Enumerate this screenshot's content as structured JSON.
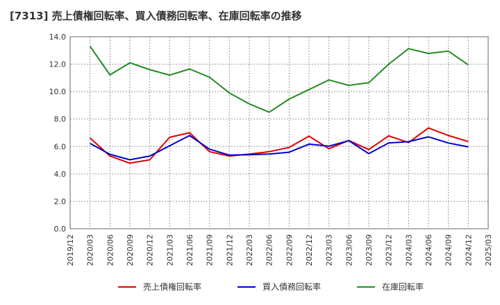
{
  "chart_data": {
    "type": "line",
    "title": "[7313]  売上債権回転率、買入債務回転率、在庫回転率の推移",
    "xlabel": "",
    "ylabel": "",
    "ylim": [
      0,
      14
    ],
    "yticks": [
      "0.0",
      "2.0",
      "4.0",
      "6.0",
      "8.0",
      "10.0",
      "12.0",
      "14.0"
    ],
    "grid": true,
    "legend_position": "bottom",
    "categories": [
      "2019/12",
      "2020/03",
      "2020/06",
      "2020/09",
      "2020/12",
      "2021/03",
      "2021/06",
      "2021/09",
      "2021/12",
      "2022/03",
      "2022/06",
      "2022/09",
      "2022/12",
      "2023/03",
      "2023/06",
      "2023/09",
      "2023/12",
      "2024/03",
      "2024/06",
      "2024/09",
      "2024/12",
      "2025/03"
    ],
    "series": [
      {
        "name": "売上債権回転率",
        "color": "#dd0000",
        "values": [
          null,
          6.62,
          5.3,
          4.78,
          5.03,
          6.67,
          7.0,
          5.62,
          5.3,
          5.45,
          5.62,
          5.93,
          6.75,
          5.83,
          6.44,
          5.77,
          6.78,
          6.28,
          7.35,
          6.8,
          6.36,
          null
        ]
      },
      {
        "name": "買入債務回転率",
        "color": "#0000cc",
        "values": [
          null,
          6.22,
          5.43,
          5.03,
          5.3,
          6.05,
          6.8,
          5.8,
          5.37,
          5.4,
          5.45,
          5.58,
          6.17,
          6.02,
          6.42,
          5.48,
          6.25,
          6.35,
          6.7,
          6.25,
          5.97,
          null
        ]
      },
      {
        "name": "在庫回転率",
        "color": "#228b22",
        "values": [
          null,
          13.3,
          11.22,
          12.1,
          11.6,
          11.2,
          11.65,
          11.05,
          9.9,
          9.1,
          8.5,
          9.45,
          10.15,
          10.85,
          10.45,
          10.65,
          12.0,
          13.13,
          12.78,
          12.95,
          11.95,
          null
        ]
      }
    ]
  }
}
